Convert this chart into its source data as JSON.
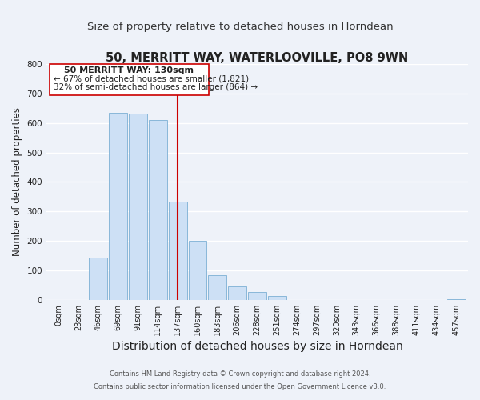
{
  "title": "50, MERRITT WAY, WATERLOOVILLE, PO8 9WN",
  "subtitle": "Size of property relative to detached houses in Horndean",
  "xlabel": "Distribution of detached houses by size in Horndean",
  "ylabel": "Number of detached properties",
  "bin_labels": [
    "0sqm",
    "23sqm",
    "46sqm",
    "69sqm",
    "91sqm",
    "114sqm",
    "137sqm",
    "160sqm",
    "183sqm",
    "206sqm",
    "228sqm",
    "251sqm",
    "274sqm",
    "297sqm",
    "320sqm",
    "343sqm",
    "366sqm",
    "388sqm",
    "411sqm",
    "434sqm",
    "457sqm"
  ],
  "bar_values": [
    0,
    0,
    143,
    635,
    632,
    610,
    333,
    200,
    84,
    46,
    27,
    12,
    0,
    0,
    0,
    0,
    0,
    0,
    0,
    0,
    2
  ],
  "bar_color": "#cde0f5",
  "bar_edge_color": "#7bafd4",
  "vline_x_index": 6,
  "vline_color": "#cc0000",
  "ylim": [
    0,
    800
  ],
  "yticks": [
    0,
    100,
    200,
    300,
    400,
    500,
    600,
    700,
    800
  ],
  "annotation_title": "50 MERRITT WAY: 130sqm",
  "annotation_line1": "← 67% of detached houses are smaller (1,821)",
  "annotation_line2": "32% of semi-detached houses are larger (864) →",
  "footer_line1": "Contains HM Land Registry data © Crown copyright and database right 2024.",
  "footer_line2": "Contains public sector information licensed under the Open Government Licence v3.0.",
  "background_color": "#eef2f9",
  "grid_color": "#ffffff",
  "title_fontsize": 10.5,
  "subtitle_fontsize": 9.5,
  "xlabel_fontsize": 10,
  "ylabel_fontsize": 8.5,
  "tick_fontsize": 7,
  "footer_fontsize": 6
}
